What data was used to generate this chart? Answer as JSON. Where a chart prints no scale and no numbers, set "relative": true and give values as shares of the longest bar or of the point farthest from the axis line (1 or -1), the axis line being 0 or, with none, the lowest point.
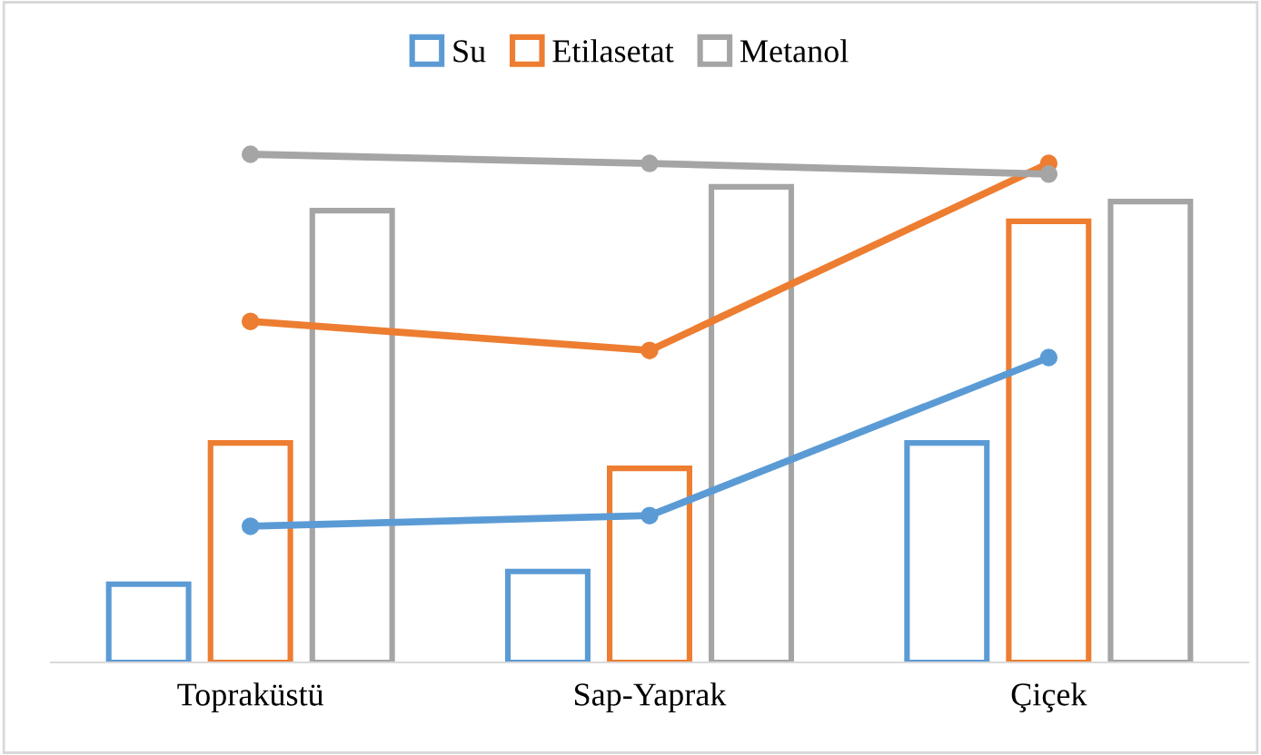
{
  "chart_data": {
    "type": "bar",
    "relative": true,
    "categories": [
      "Topraküstü",
      "Sap-Yaprak",
      "Çiçek"
    ],
    "series": [
      {
        "name": "Su",
        "color": "#5b9bd5",
        "values": [
          0.154,
          0.179,
          0.432
        ]
      },
      {
        "name": "Etilasetat",
        "color": "#ed7d31",
        "values": [
          0.432,
          0.382,
          0.868
        ]
      },
      {
        "name": "Metanol",
        "color": "#a5a5a5",
        "values": [
          0.889,
          0.936,
          0.907
        ]
      },
      {
        "type": "line",
        "color": "#5b9bd5",
        "values": [
          0.268,
          0.289,
          0.6
        ]
      },
      {
        "type": "line",
        "color": "#ed7d31",
        "values": [
          0.671,
          0.614,
          0.982
        ]
      },
      {
        "type": "line",
        "color": "#a5a5a5",
        "values": [
          1,
          0.982,
          0.961
        ]
      }
    ],
    "legend": "top",
    "marker": "circle",
    "line_style": "solid",
    "grid": false
  }
}
